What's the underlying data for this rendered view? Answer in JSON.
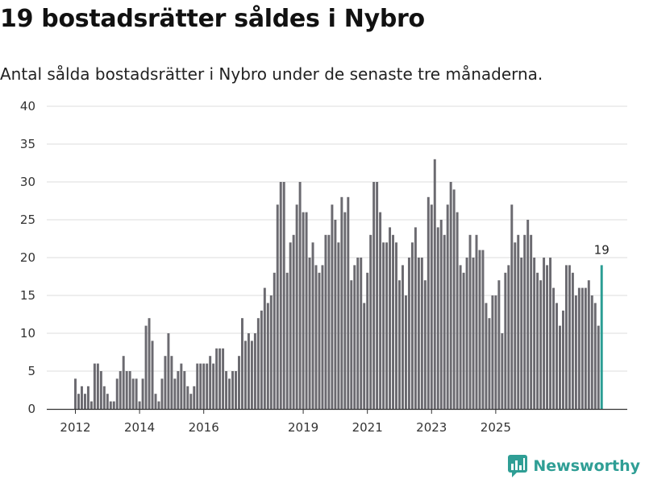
{
  "chart_data": {
    "type": "bar",
    "title": "19 bostadsrätter såldes i Nybro",
    "subtitle": "Antal sålda bostadsrätter i Nybro under de senaste tre månaderna.",
    "xlabel": "",
    "ylabel": "",
    "ylim": [
      0,
      40
    ],
    "yticks": [
      0,
      5,
      10,
      15,
      20,
      25,
      30,
      35,
      40
    ],
    "xticks": [
      {
        "label": "2012",
        "index": 0
      },
      {
        "label": "2014",
        "index": 20
      },
      {
        "label": "2016",
        "index": 40
      },
      {
        "label": "2019",
        "index": 71
      },
      {
        "label": "2021",
        "index": 91
      },
      {
        "label": "2023",
        "index": 111
      },
      {
        "label": "2025",
        "index": 131
      }
    ],
    "values": [
      4,
      2,
      3,
      2,
      3,
      1,
      6,
      6,
      5,
      3,
      2,
      1,
      1,
      4,
      5,
      7,
      5,
      5,
      4,
      4,
      1,
      4,
      11,
      12,
      9,
      2,
      1,
      4,
      7,
      10,
      7,
      4,
      5,
      6,
      5,
      3,
      2,
      3,
      6,
      6,
      6,
      6,
      7,
      6,
      8,
      8,
      8,
      5,
      4,
      5,
      5,
      7,
      12,
      9,
      10,
      9,
      10,
      12,
      13,
      16,
      14,
      15,
      18,
      27,
      30,
      30,
      18,
      22,
      23,
      27,
      30,
      26,
      26,
      20,
      22,
      19,
      18,
      19,
      23,
      23,
      27,
      25,
      22,
      28,
      26,
      28,
      17,
      19,
      20,
      20,
      14,
      18,
      23,
      30,
      30,
      26,
      22,
      22,
      24,
      23,
      22,
      17,
      19,
      15,
      20,
      22,
      24,
      20,
      20,
      17,
      28,
      27,
      33,
      24,
      25,
      23,
      27,
      30,
      29,
      26,
      19,
      18,
      20,
      23,
      20,
      23,
      21,
      21,
      14,
      12,
      15,
      15,
      17,
      10,
      18,
      19,
      27,
      22,
      23,
      20,
      23,
      25,
      23,
      20,
      18,
      17,
      20,
      19,
      20,
      16,
      14,
      11,
      13,
      19,
      19,
      18,
      15,
      16,
      16,
      16,
      17,
      15,
      14,
      11,
      19
    ],
    "highlight_index": 164,
    "bar_color": "#6b6a70",
    "highlight_color": "#2a9d93",
    "highlight_label": "19",
    "gridlines": true
  },
  "brand": {
    "name": "Newsworthy",
    "icon": "newsworthy-logo-icon",
    "color": "#2f9e95"
  }
}
